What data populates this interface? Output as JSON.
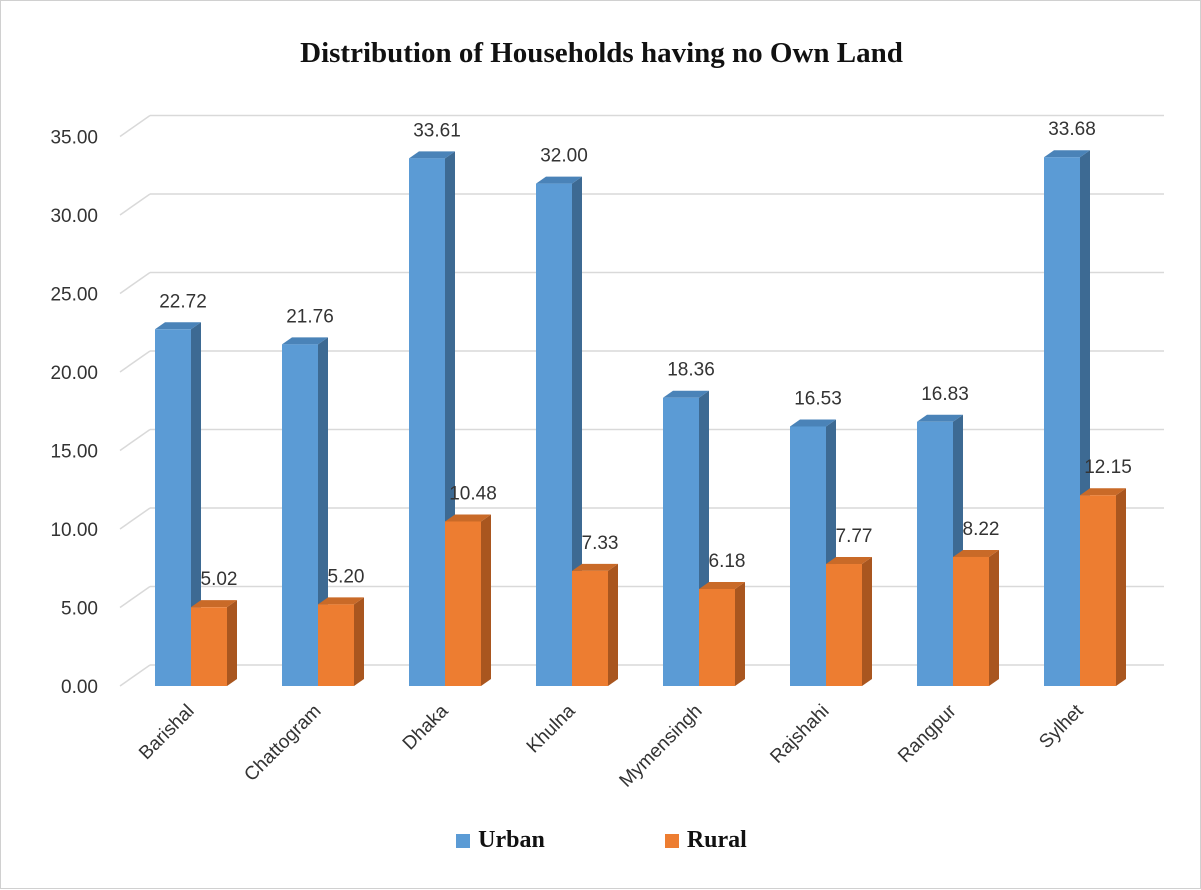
{
  "chart_data": {
    "type": "bar",
    "title": "Distribution of Households having no Own Land",
    "categories": [
      "Barishal",
      "Chattogram",
      "Dhaka",
      "Khulna",
      "Mymensingh",
      "Rajshahi",
      "Rangpur",
      "Sylhet"
    ],
    "series": [
      {
        "name": "Urban",
        "values": [
          22.72,
          21.76,
          33.61,
          32.0,
          18.36,
          16.53,
          16.83,
          33.68
        ],
        "labels": [
          "22.72",
          "21.76",
          "33.61",
          "32.00",
          "18.36",
          "16.53",
          "16.83",
          "33.68"
        ],
        "color": "#5B9BD5",
        "side_color": "#3D6A93",
        "top_color": "#4A83B8"
      },
      {
        "name": "Rural",
        "values": [
          5.02,
          5.2,
          10.48,
          7.33,
          6.18,
          7.77,
          8.22,
          12.15
        ],
        "labels": [
          "5.02",
          "5.20",
          "10.48",
          "7.33",
          "6.18",
          "7.77",
          "8.22",
          "12.15"
        ],
        "color": "#ED7D31",
        "side_color": "#A9561F",
        "top_color": "#C96A28"
      }
    ],
    "ylim": [
      0,
      35
    ],
    "yticks": [
      "0.00",
      "5.00",
      "10.00",
      "15.00",
      "20.00",
      "25.00",
      "30.00",
      "35.00"
    ],
    "grid": true,
    "legend_position": "bottom",
    "three_d": true
  }
}
